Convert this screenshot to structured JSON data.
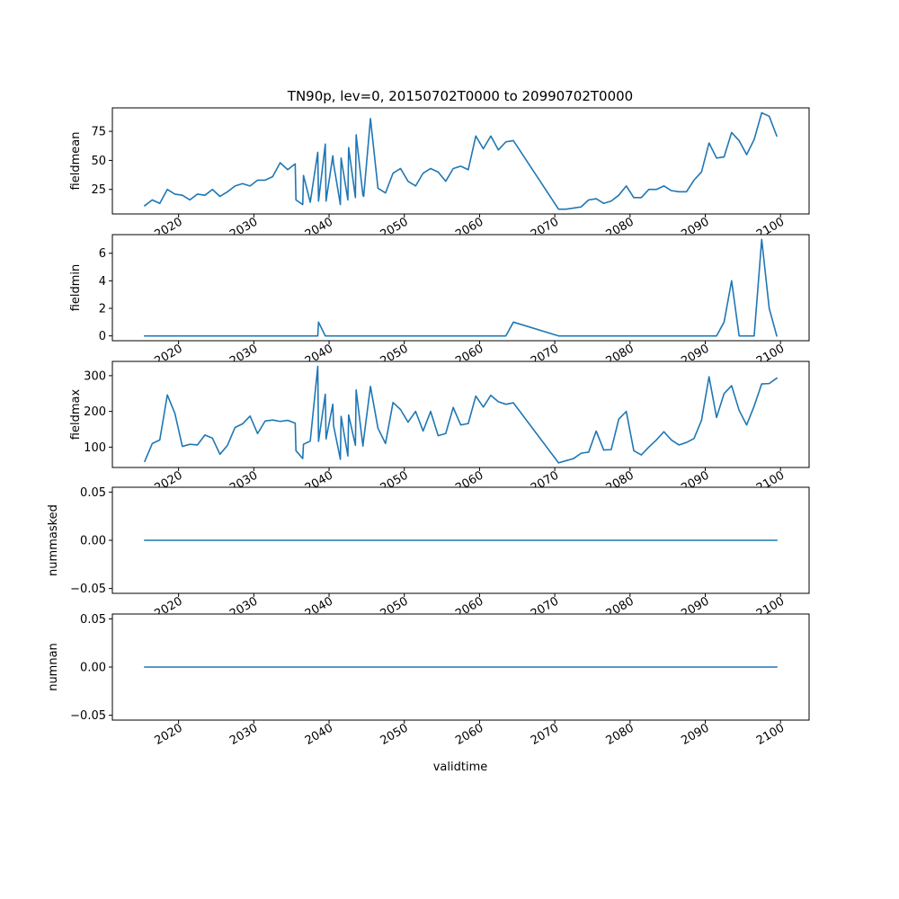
{
  "chart_data": {
    "type": "line",
    "title": "TN90p, lev=0, 20150702T0000 to 20990702T0000",
    "xlabel": "validtime",
    "xlim": [
      2011.2,
      2103.8
    ],
    "x_ticks": [
      2020,
      2030,
      2040,
      2050,
      2060,
      2070,
      2080,
      2090,
      2100
    ],
    "x_tick_labels": [
      "2020",
      "2030",
      "2040",
      "2050",
      "2060",
      "2070",
      "2080",
      "2090",
      "2100"
    ],
    "line_color": "#1f77b4",
    "x": [
      2015.5,
      2016.5,
      2017.5,
      2018.5,
      2019.5,
      2020.5,
      2021.5,
      2022.5,
      2023.5,
      2024.5,
      2025.5,
      2026.5,
      2027.5,
      2028.5,
      2029.5,
      2030.5,
      2031.5,
      2032.5,
      2033.5,
      2034.5,
      2035.5,
      2035.6,
      2036.5,
      2036.6,
      2037.5,
      2038.5,
      2038.6,
      2039.5,
      2039.6,
      2040.5,
      2040.6,
      2041.5,
      2041.6,
      2042.5,
      2042.6,
      2043.5,
      2043.6,
      2044.5,
      2044.6,
      2045.5,
      2046.5,
      2047.5,
      2048.5,
      2049.5,
      2050.5,
      2051.5,
      2052.5,
      2053.5,
      2054.5,
      2055.5,
      2056.5,
      2057.5,
      2058.5,
      2059.5,
      2060.5,
      2061.5,
      2062.5,
      2063.5,
      2064.5,
      2070.5,
      2071.5,
      2072.5,
      2073.5,
      2074.5,
      2075.5,
      2076.5,
      2077.5,
      2078.5,
      2079.5,
      2080.5,
      2081.5,
      2082.5,
      2083.5,
      2084.5,
      2085.5,
      2086.5,
      2087.5,
      2088.5,
      2089.5,
      2090.5,
      2091.5,
      2092.5,
      2093.5,
      2094.5,
      2095.5,
      2096.5,
      2097.5,
      2098.5,
      2099.5
    ],
    "series": [
      {
        "name": "fieldmean",
        "ylabel": "fieldmean",
        "ylim": [
          3.9,
          95.2
        ],
        "y_ticks": [
          25,
          50,
          75
        ],
        "y_tick_labels": [
          "25",
          "50",
          "75"
        ],
        "values": [
          11,
          16,
          13,
          25,
          21,
          20,
          16,
          21,
          20,
          25,
          19,
          23,
          28,
          30,
          28,
          33,
          33,
          36,
          48,
          42,
          47,
          16,
          12,
          37,
          14,
          57,
          15,
          64,
          15,
          54,
          47,
          12,
          52,
          16,
          61,
          18,
          72,
          20,
          19,
          86,
          26,
          22,
          39,
          43,
          32,
          28,
          39,
          43,
          40,
          32,
          43,
          45,
          42,
          71,
          60,
          71,
          59,
          66,
          67,
          8,
          8,
          9,
          10,
          16,
          17,
          13,
          15,
          20,
          28,
          18,
          18,
          25,
          25,
          28,
          24,
          23,
          23,
          33,
          40,
          65,
          52,
          53,
          74,
          67,
          55,
          68,
          91,
          88,
          71
        ]
      },
      {
        "name": "fieldmin",
        "ylabel": "fieldmin",
        "ylim": [
          -0.35,
          7.35
        ],
        "y_ticks": [
          0,
          2,
          4,
          6
        ],
        "y_tick_labels": [
          "0",
          "2",
          "4",
          "6"
        ],
        "values": [
          0,
          0,
          0,
          0,
          0,
          0,
          0,
          0,
          0,
          0,
          0,
          0,
          0,
          0,
          0,
          0,
          0,
          0,
          0,
          0,
          0,
          0,
          0,
          0,
          0,
          0,
          1,
          0,
          0,
          0,
          0,
          0,
          0,
          0,
          0,
          0,
          0,
          0,
          0,
          0,
          0,
          0,
          0,
          0,
          0,
          0,
          0,
          0,
          0,
          0,
          0,
          0,
          0,
          0,
          0,
          0,
          0,
          0,
          1,
          0,
          0,
          0,
          0,
          0,
          0,
          0,
          0,
          0,
          0,
          0,
          0,
          0,
          0,
          0,
          0,
          0,
          0,
          0,
          0,
          0,
          0,
          1,
          4,
          0,
          0,
          0,
          7,
          2,
          0
        ]
      },
      {
        "name": "fieldmax",
        "ylabel": "fieldmax",
        "ylim": [
          43,
          340
        ],
        "y_ticks": [
          100,
          200,
          300
        ],
        "y_tick_labels": [
          "100",
          "200",
          "300"
        ],
        "values": [
          60,
          110,
          120,
          246,
          195,
          102,
          108,
          106,
          134,
          125,
          80,
          105,
          155,
          165,
          187,
          138,
          173,
          176,
          172,
          175,
          167,
          90,
          68,
          108,
          117,
          326,
          116,
          248,
          123,
          220,
          160,
          66,
          186,
          75,
          190,
          105,
          260,
          103,
          122,
          270,
          153,
          110,
          225,
          205,
          170,
          200,
          145,
          200,
          132,
          138,
          211,
          162,
          166,
          243,
          212,
          245,
          227,
          220,
          224,
          56,
          62,
          68,
          83,
          86,
          145,
          92,
          93,
          178,
          200,
          90,
          78,
          100,
          120,
          143,
          120,
          106,
          113,
          124,
          175,
          297,
          183,
          250,
          272,
          203,
          162,
          215,
          277,
          278,
          293
        ]
      },
      {
        "name": "nummasked",
        "ylabel": "nummasked",
        "ylim": [
          -0.055,
          0.055
        ],
        "y_ticks": [
          -0.05,
          0.0,
          0.05
        ],
        "y_tick_labels": [
          "−0.05",
          "0.00",
          "0.05"
        ],
        "values": "all 0 across x",
        "constant": 0
      },
      {
        "name": "numnan",
        "ylabel": "numnan",
        "ylim": [
          -0.055,
          0.055
        ],
        "y_ticks": [
          -0.05,
          0.0,
          0.05
        ],
        "y_tick_labels": [
          "−0.05",
          "0.00",
          "0.05"
        ],
        "values": "all 0 across x",
        "constant": 0
      }
    ]
  }
}
